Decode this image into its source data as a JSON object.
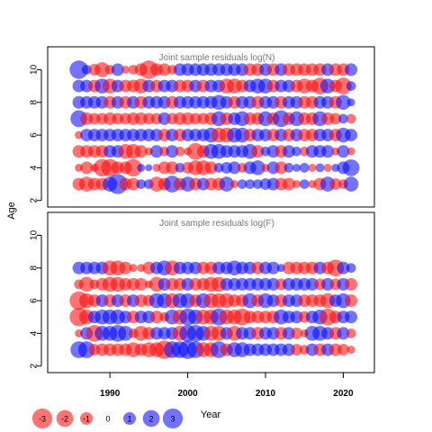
{
  "chart_data": {
    "type": "scatter",
    "ylabel": "Age",
    "xlabel": "Year",
    "xlim": [
      1982,
      2024
    ],
    "x_ticks": [
      1990,
      2000,
      2010,
      2020
    ],
    "colors": {
      "positive": "#0000ff",
      "negative": "#ff0000",
      "opacity": 0.55
    },
    "panels": [
      {
        "title": "Joint sample residuals log(N)",
        "ylim": [
          1.6,
          11.4
        ],
        "y_ticks": [
          2,
          4,
          6,
          8,
          10
        ],
        "years": [
          1986,
          1987,
          1988,
          1989,
          1990,
          1991,
          1992,
          1993,
          1994,
          1995,
          1996,
          1997,
          1998,
          1999,
          2000,
          2001,
          2002,
          2003,
          2004,
          2005,
          2006,
          2007,
          2008,
          2009,
          2010,
          2011,
          2012,
          2013,
          2014,
          2015,
          2016,
          2017,
          2018,
          2019,
          2020,
          2021
        ],
        "ages": [
          3,
          4,
          5,
          6,
          7,
          8,
          9,
          10
        ],
        "residuals": {
          "3": [
            -1.0,
            -1.5,
            -1.0,
            -1.0,
            1.5,
            3.0,
            -1.0,
            -1.0,
            0.5,
            0.5,
            -1.5,
            -1.0,
            2.0,
            -1.0,
            1.5,
            -1.0,
            1.0,
            -1.0,
            -1.0,
            1.5,
            -0.3,
            0.5,
            0.5,
            0.5,
            0.8,
            1.0,
            -1.0,
            -1.0,
            -0.3,
            0.5,
            -0.3,
            -1.0,
            1.5,
            -0.8,
            -0.5,
            1.5
          ],
          "4": [
            -0.3,
            -1.0,
            -0.3,
            -2.2,
            -2.2,
            -1.0,
            -1.0,
            -2.2,
            0.3,
            0.2,
            -0.3,
            -1.0,
            -1.0,
            0.5,
            -0.8,
            -1.5,
            -1.5,
            -1.0,
            0.5,
            0.8,
            1.0,
            -0.5,
            1.0,
            1.5,
            -0.3,
            1.0,
            -1.0,
            0.5,
            0.3,
            0.5,
            -0.3,
            0.4,
            -0.3,
            0.3,
            1.0,
            2.0
          ],
          "5": [
            -1.0,
            -1.0,
            -1.0,
            -1.0,
            1.0,
            1.0,
            -1.5,
            -1.5,
            -1.0,
            -0.3,
            1.0,
            -0.5,
            1.0,
            -0.5,
            -0.3,
            -2.0,
            -1.0,
            1.5,
            1.5,
            1.0,
            1.0,
            1.0,
            1.5,
            -1.0,
            0.5,
            1.0,
            -1.0,
            1.0,
            0.5,
            -0.5,
            1.0,
            1.0,
            1.0,
            -0.3,
            1.0,
            -0.3
          ],
          "6": [
            -0.3,
            1.0,
            1.0,
            1.0,
            1.0,
            1.0,
            1.0,
            1.0,
            1.0,
            1.0,
            1.0,
            -1.0,
            1.0,
            -1.0,
            1.0,
            1.0,
            1.0,
            1.5,
            -1.5,
            -1.5,
            1.5,
            1.5,
            -1.0,
            1.0,
            1.0,
            -1.0,
            1.0,
            -1.0,
            1.0,
            -1.0,
            -1.0,
            1.0,
            1.0,
            -1.0,
            1.5,
            1.0
          ],
          "7": [
            2.0,
            -1.0,
            -0.8,
            -0.8,
            -1.0,
            -0.8,
            -0.8,
            -1.0,
            -1.0,
            -0.8,
            -0.8,
            1.0,
            -0.8,
            -1.0,
            -1.0,
            -0.8,
            -0.8,
            -1.0,
            1.5,
            -1.0,
            1.0,
            1.5,
            -1.0,
            -1.0,
            1.5,
            -1.0,
            2.0,
            -1.0,
            1.5,
            -1.0,
            -1.0,
            1.5,
            -1.0,
            -0.8,
            0.5,
            -0.5
          ],
          "8": [
            1.0,
            1.0,
            1.0,
            1.0,
            -1.0,
            1.0,
            -1.0,
            1.0,
            -1.0,
            1.0,
            1.0,
            1.0,
            -1.0,
            1.0,
            1.0,
            1.0,
            1.0,
            1.0,
            1.5,
            1.0,
            -1.0,
            1.0,
            1.0,
            -1.0,
            1.0,
            1.0,
            -1.0,
            1.0,
            1.0,
            -1.0,
            -1.0,
            1.0,
            1.0,
            -1.0,
            1.5,
            0.3
          ],
          "9": [
            1.0,
            1.0,
            -1.0,
            1.5,
            -1.5,
            1.0,
            -1.0,
            -1.0,
            -1.5,
            1.0,
            -1.0,
            1.0,
            1.0,
            -1.0,
            -1.0,
            1.0,
            -1.0,
            1.0,
            1.0,
            -1.5,
            -1.5,
            -1.0,
            1.0,
            1.5,
            1.5,
            -1.0,
            1.0,
            1.0,
            -1.0,
            -1.5,
            -1.0,
            -2.0,
            1.5,
            -1.0,
            -2.0,
            0.5
          ],
          "10": [
            2.5,
            0.5,
            -0.8,
            -1.5,
            -0.5,
            1.0,
            -0.3,
            -0.5,
            -1.0,
            -2.5,
            -1.0,
            -1.0,
            -0.5,
            1.0,
            1.0,
            1.0,
            1.0,
            1.0,
            1.0,
            1.0,
            1.0,
            1.0,
            -1.0,
            -1.0,
            1.0,
            -1.0,
            1.0,
            -1.0,
            -1.0,
            -1.0,
            -1.0,
            -1.0,
            1.0,
            -1.0,
            -1.0,
            1.0
          ]
        }
      },
      {
        "title": "Joint sample residuals log(F)",
        "ylim": [
          1.6,
          11.4
        ],
        "y_ticks": [
          2,
          4,
          6,
          8,
          10
        ],
        "years": [
          1986,
          1987,
          1988,
          1989,
          1990,
          1991,
          1992,
          1993,
          1994,
          1995,
          1996,
          1997,
          1998,
          1999,
          2000,
          2001,
          2002,
          2003,
          2004,
          2005,
          2006,
          2007,
          2008,
          2009,
          2010,
          2011,
          2012,
          2013,
          2014,
          2015,
          2016,
          2017,
          2018,
          2019,
          2020,
          2021
        ],
        "ages": [
          3,
          4,
          5,
          6,
          7,
          8
        ],
        "residuals": {
          "3": [
            2.0,
            2.0,
            -0.8,
            -1.0,
            -1.0,
            -1.0,
            -1.0,
            -1.5,
            -1.0,
            -1.5,
            -1.5,
            -2.5,
            2.0,
            2.0,
            2.5,
            2.0,
            -1.5,
            -1.5,
            2.0,
            -1.0,
            1.5,
            1.5,
            1.0,
            1.0,
            1.0,
            1.0,
            1.0,
            1.0,
            -0.8,
            -0.5,
            1.0,
            -1.0,
            1.0,
            -1.0,
            -0.8,
            -0.3
          ],
          "4": [
            -0.3,
            1.0,
            -2.0,
            1.5,
            1.5,
            2.0,
            1.5,
            -0.5,
            -1.5,
            -1.0,
            1.0,
            1.0,
            1.0,
            -1.5,
            2.0,
            2.0,
            1.5,
            -1.5,
            -1.5,
            1.0,
            -1.5,
            1.0,
            1.0,
            -1.0,
            1.0,
            1.0,
            -1.0,
            1.0,
            -0.8,
            -0.3,
            1.5,
            1.5,
            1.0,
            -1.0,
            1.0,
            -0.5
          ],
          "5": [
            -2.5,
            -1.5,
            1.0,
            1.5,
            1.5,
            1.5,
            1.0,
            -1.0,
            1.0,
            1.0,
            -1.0,
            -0.5,
            1.5,
            -1.5,
            2.0,
            1.5,
            -1.5,
            -1.5,
            2.0,
            -1.5,
            -1.5,
            -2.0,
            -1.0,
            -1.0,
            -1.0,
            -1.0,
            1.5,
            1.0,
            1.0,
            -0.8,
            1.0,
            1.5,
            -2.0,
            -1.0,
            1.0,
            1.0
          ],
          "6": [
            -2.5,
            -1.5,
            -1.0,
            1.0,
            -1.0,
            1.0,
            -1.0,
            1.0,
            -1.0,
            -0.8,
            1.5,
            1.5,
            -1.5,
            1.5,
            1.5,
            -1.0,
            1.5,
            -1.5,
            -1.5,
            -1.5,
            -1.0,
            -1.0,
            1.5,
            -1.0,
            1.5,
            1.0,
            -1.0,
            1.0,
            1.0,
            -1.0,
            -1.0,
            -1.0,
            -1.5,
            1.0,
            1.5,
            -1.0
          ],
          "7": [
            -0.5,
            -1.5,
            -0.5,
            -1.0,
            -1.5,
            -1.5,
            -1.0,
            -1.0,
            -1.0,
            -0.3,
            -1.5,
            1.0,
            -1.0,
            -1.0,
            1.0,
            -1.0,
            -1.0,
            -1.5,
            -1.5,
            1.0,
            1.0,
            1.0,
            1.0,
            1.0,
            1.0,
            1.0,
            -0.8,
            1.0,
            1.0,
            1.0,
            1.0,
            -0.8,
            1.0,
            -0.8,
            1.0,
            -1.0
          ],
          "8": [
            1.0,
            1.0,
            1.0,
            1.0,
            -1.5,
            -1.5,
            -1.0,
            -0.3,
            -0.3,
            -1.0,
            1.0,
            1.5,
            -1.5,
            1.0,
            1.0,
            1.0,
            -1.0,
            -1.0,
            1.0,
            1.0,
            1.5,
            1.0,
            1.0,
            -1.0,
            1.0,
            1.0,
            0.3,
            -1.0,
            -1.0,
            -1.0,
            -1.0,
            1.0,
            -1.0,
            -2.0,
            1.0,
            0.5
          ]
        }
      }
    ],
    "legend": {
      "values": [
        -3,
        -2,
        -1,
        0,
        1,
        2,
        3
      ],
      "labels": [
        "-3",
        "-2",
        "-1",
        "0",
        "1",
        "2",
        "3"
      ],
      "title": "Year"
    }
  }
}
